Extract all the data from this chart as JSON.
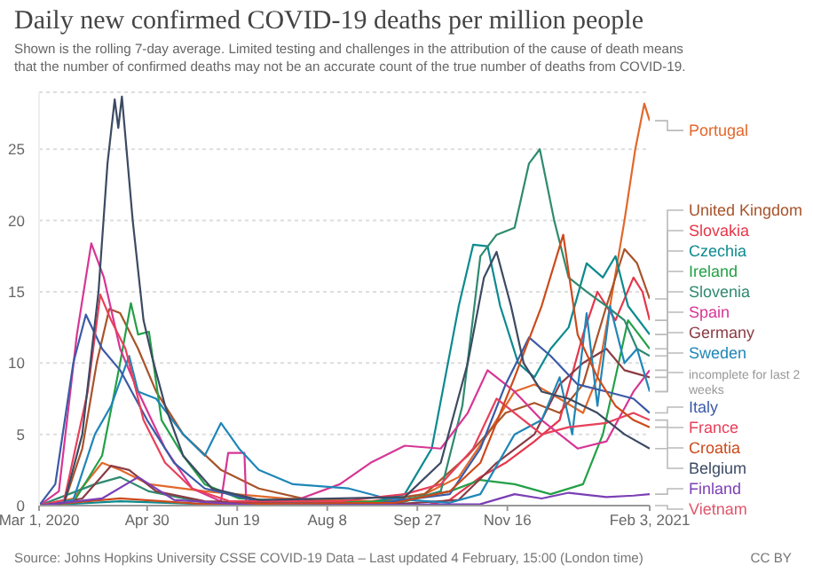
{
  "chart_data": {
    "type": "line",
    "title": "Daily new confirmed COVID-19 deaths per million people",
    "subtitle": "Shown is the rolling 7-day average. Limited testing and challenges in the attribution of the cause of death means that the number of confirmed deaths may not be an accurate count of the true number of deaths from COVID-19.",
    "annotations": [
      "Source: Johns Hopkins University CSSE COVID-19 Data – Last updated 4 February, 15:00 (London time)",
      "CC BY",
      {
        "text": "incomplete for last 2 weeks",
        "x": "2021-02-03",
        "y": 8
      }
    ],
    "xlim": [
      "2020-03-01",
      "2021-02-03"
    ],
    "xticks": [
      {
        "value": "2020-03-01",
        "label": "Mar 1, 2020"
      },
      {
        "value": "2020-04-30",
        "label": "Apr 30"
      },
      {
        "value": "2020-06-19",
        "label": "Jun 19"
      },
      {
        "value": "2020-08-08",
        "label": "Aug 8"
      },
      {
        "value": "2020-09-27",
        "label": "Sep 27"
      },
      {
        "value": "2020-11-16",
        "label": "Nov 16"
      },
      {
        "value": "2021-02-03",
        "label": "Feb 3, 2021"
      }
    ],
    "ylim": [
      0,
      29
    ],
    "yticks": [
      0,
      5,
      10,
      15,
      20,
      25
    ],
    "grid": "y",
    "line_style": "solid",
    "series": [
      {
        "name": "Portugal",
        "color": "#e2682b",
        "x": [
          "2020-03-01",
          "2020-03-20",
          "2020-04-05",
          "2020-04-15",
          "2020-05-01",
          "2020-06-01",
          "2020-07-15",
          "2020-09-01",
          "2020-10-01",
          "2020-10-20",
          "2020-11-05",
          "2020-11-20",
          "2020-12-01",
          "2020-12-15",
          "2020-12-28",
          "2021-01-05",
          "2021-01-12",
          "2021-01-20",
          "2021-01-26",
          "2021-01-31",
          "2021-02-03"
        ],
        "values": [
          0,
          0.5,
          3,
          2.5,
          1.5,
          1,
          0.5,
          0.3,
          0.8,
          2,
          5,
          8,
          8.5,
          7.5,
          6.5,
          9,
          14,
          20,
          25,
          28.2,
          27
        ]
      },
      {
        "name": "United Kingdom",
        "color": "#a8532a",
        "x": [
          "2020-03-01",
          "2020-03-15",
          "2020-03-25",
          "2020-04-02",
          "2020-04-09",
          "2020-04-15",
          "2020-04-25",
          "2020-05-05",
          "2020-05-20",
          "2020-06-10",
          "2020-07-01",
          "2020-08-01",
          "2020-09-01",
          "2020-10-01",
          "2020-10-25",
          "2020-11-15",
          "2020-12-01",
          "2020-12-15",
          "2020-12-28",
          "2021-01-10",
          "2021-01-20",
          "2021-01-27",
          "2021-02-03"
        ],
        "values": [
          0,
          0.2,
          4,
          10,
          13.8,
          13.5,
          11,
          8,
          5,
          2.5,
          1.2,
          0.3,
          0.2,
          0.8,
          3.5,
          6.5,
          7.2,
          6.5,
          8.5,
          14,
          18,
          17,
          14.5
        ]
      },
      {
        "name": "Slovakia",
        "color": "#e6364a",
        "x": [
          "2020-03-01",
          "2020-10-01",
          "2020-10-15",
          "2020-11-01",
          "2020-11-15",
          "2020-12-01",
          "2020-12-15",
          "2020-12-28",
          "2021-01-05",
          "2021-01-15",
          "2021-01-25",
          "2021-01-30",
          "2021-02-03"
        ],
        "values": [
          0,
          0,
          0.4,
          2,
          3,
          4.5,
          6,
          12,
          15,
          13,
          16,
          15,
          13
        ]
      },
      {
        "name": "Czechia",
        "color": "#0d8a8f",
        "x": [
          "2020-03-01",
          "2020-04-15",
          "2020-06-01",
          "2020-09-01",
          "2020-09-20",
          "2020-10-05",
          "2020-10-20",
          "2020-10-28",
          "2020-11-05",
          "2020-11-12",
          "2020-11-22",
          "2020-12-01",
          "2020-12-10",
          "2020-12-20",
          "2020-12-30",
          "2021-01-08",
          "2021-01-15",
          "2021-01-22",
          "2021-02-03"
        ],
        "values": [
          0,
          0.3,
          0.1,
          0.2,
          0.8,
          4,
          14,
          18.3,
          18.2,
          14,
          10,
          9,
          11,
          12.5,
          17,
          16,
          17.5,
          14,
          12
        ]
      },
      {
        "name": "Ireland",
        "color": "#23a047",
        "x": [
          "2020-03-01",
          "2020-03-20",
          "2020-04-05",
          "2020-04-15",
          "2020-04-21",
          "2020-04-25",
          "2020-05-01",
          "2020-05-08",
          "2020-05-20",
          "2020-06-01",
          "2020-06-20",
          "2020-08-01",
          "2020-09-15",
          "2020-10-15",
          "2020-11-01",
          "2020-11-20",
          "2020-12-10",
          "2020-12-28",
          "2021-01-08",
          "2021-01-15",
          "2021-01-22",
          "2021-01-28",
          "2021-02-03"
        ],
        "values": [
          0,
          0.2,
          3.5,
          10,
          14.2,
          12,
          12.2,
          6,
          3.5,
          1.5,
          0.5,
          0.2,
          0.3,
          1,
          1.8,
          1.5,
          0.8,
          1.5,
          5,
          9,
          13,
          12,
          11
        ]
      },
      {
        "name": "Slovenia",
        "color": "#2f8a6f",
        "x": [
          "2020-03-01",
          "2020-04-01",
          "2020-04-15",
          "2020-05-01",
          "2020-06-01",
          "2020-09-15",
          "2020-10-10",
          "2020-10-22",
          "2020-11-01",
          "2020-11-10",
          "2020-11-20",
          "2020-11-28",
          "2020-12-04",
          "2020-12-12",
          "2020-12-20",
          "2020-12-30",
          "2021-01-10",
          "2021-01-20",
          "2021-01-27",
          "2021-02-03"
        ],
        "values": [
          0,
          1.5,
          2,
          1,
          0.2,
          0.1,
          1,
          7,
          17.5,
          19,
          19.5,
          24,
          25,
          20,
          16,
          15,
          14,
          13,
          11,
          10.5
        ]
      },
      {
        "name": "Spain",
        "color": "#d63694",
        "x": [
          "2020-03-01",
          "2020-03-12",
          "2020-03-22",
          "2020-03-30",
          "2020-04-06",
          "2020-04-15",
          "2020-04-25",
          "2020-05-10",
          "2020-05-25",
          "2020-06-10",
          "2020-06-14",
          "2020-06-23",
          "2020-06-24",
          "2020-07-20",
          "2020-08-15",
          "2020-09-01",
          "2020-09-20",
          "2020-10-10",
          "2020-10-25",
          "2020-11-05",
          "2020-11-20",
          "2020-12-05",
          "2020-12-25",
          "2021-01-10",
          "2021-01-25",
          "2021-02-03"
        ],
        "values": [
          0,
          1,
          12,
          18.4,
          16,
          11,
          8,
          4,
          1.2,
          0.3,
          3.7,
          3.7,
          0.3,
          0.3,
          1.5,
          3,
          4.2,
          4,
          6.5,
          9.5,
          8,
          6,
          4,
          4.5,
          8,
          9.5
        ]
      },
      {
        "name": "Germany",
        "color": "#8a3b44",
        "x": [
          "2020-03-01",
          "2020-03-25",
          "2020-04-10",
          "2020-04-20",
          "2020-05-05",
          "2020-06-01",
          "2020-09-15",
          "2020-10-20",
          "2020-11-10",
          "2020-12-01",
          "2020-12-15",
          "2020-12-28",
          "2021-01-10",
          "2021-01-20",
          "2021-02-03"
        ],
        "values": [
          0,
          0.5,
          2.8,
          2.5,
          1,
          0.3,
          0.1,
          0.4,
          3,
          5,
          8.5,
          10,
          11,
          9.5,
          9
        ]
      },
      {
        "name": "Sweden",
        "color": "#1f86b8",
        "x": [
          "2020-03-01",
          "2020-03-20",
          "2020-04-01",
          "2020-04-10",
          "2020-04-20",
          "2020-04-25",
          "2020-05-05",
          "2020-05-20",
          "2020-06-01",
          "2020-06-10",
          "2020-06-20",
          "2020-07-01",
          "2020-07-20",
          "2020-08-20",
          "2020-09-10",
          "2020-10-15",
          "2020-11-01",
          "2020-11-20",
          "2020-12-05",
          "2020-12-15",
          "2020-12-22",
          "2020-12-30",
          "2021-01-05",
          "2021-01-12",
          "2021-01-20",
          "2021-01-27",
          "2021-02-03"
        ],
        "values": [
          0,
          0.4,
          5,
          7,
          10.5,
          8,
          7.5,
          5,
          3.5,
          5.8,
          4,
          2.5,
          1.5,
          1.2,
          0.5,
          0.2,
          0.8,
          5,
          6,
          9,
          5,
          13.5,
          7,
          14,
          10,
          11,
          8
        ]
      },
      {
        "name": "Italy",
        "color": "#3b5ba5",
        "x": [
          "2020-03-01",
          "2020-03-10",
          "2020-03-20",
          "2020-03-27",
          "2020-04-05",
          "2020-04-15",
          "2020-04-30",
          "2020-05-15",
          "2020-06-01",
          "2020-07-01",
          "2020-09-01",
          "2020-10-15",
          "2020-11-01",
          "2020-11-15",
          "2020-11-28",
          "2020-12-10",
          "2020-12-25",
          "2021-01-10",
          "2021-01-25",
          "2021-02-03"
        ],
        "values": [
          0,
          1.5,
          10,
          13.4,
          11,
          9.5,
          6,
          3,
          1.2,
          0.3,
          0.1,
          0.8,
          4,
          8.5,
          11.8,
          10.5,
          8.5,
          8,
          7.5,
          6.5
        ]
      },
      {
        "name": "France",
        "color": "#e8405a",
        "x": [
          "2020-03-01",
          "2020-03-15",
          "2020-03-28",
          "2020-04-04",
          "2020-04-10",
          "2020-04-18",
          "2020-04-28",
          "2020-05-10",
          "2020-05-25",
          "2020-06-15",
          "2020-08-15",
          "2020-09-20",
          "2020-10-10",
          "2020-10-28",
          "2020-11-10",
          "2020-11-20",
          "2020-12-05",
          "2020-12-20",
          "2021-01-10",
          "2021-01-25",
          "2021-02-03"
        ],
        "values": [
          0,
          0.4,
          8,
          14.8,
          13,
          11,
          6,
          3,
          1.2,
          0.3,
          0.3,
          0.8,
          1.5,
          4,
          7.5,
          6.5,
          5,
          5.5,
          5.8,
          6.5,
          6
        ]
      },
      {
        "name": "Croatia",
        "color": "#cc4a1b",
        "x": [
          "2020-03-01",
          "2020-04-15",
          "2020-06-01",
          "2020-09-15",
          "2020-10-15",
          "2020-11-01",
          "2020-11-20",
          "2020-12-05",
          "2020-12-17",
          "2020-12-25",
          "2021-01-05",
          "2021-01-15",
          "2021-01-25",
          "2021-02-03"
        ],
        "values": [
          0,
          0.5,
          0.1,
          0.2,
          1,
          3,
          9,
          14,
          19,
          12,
          9,
          7,
          6,
          5.5
        ]
      },
      {
        "name": "Belgium",
        "color": "#3c4a63",
        "x": [
          "2020-03-01",
          "2020-03-15",
          "2020-03-25",
          "2020-04-03",
          "2020-04-08",
          "2020-04-12",
          "2020-04-14",
          "2020-04-16",
          "2020-04-22",
          "2020-04-28",
          "2020-05-03",
          "2020-05-10",
          "2020-05-20",
          "2020-06-05",
          "2020-07-01",
          "2020-08-15",
          "2020-09-20",
          "2020-10-10",
          "2020-10-25",
          "2020-11-03",
          "2020-11-10",
          "2020-11-18",
          "2020-11-25",
          "2020-12-05",
          "2020-12-20",
          "2021-01-05",
          "2021-01-20",
          "2021-02-03"
        ],
        "values": [
          0,
          0.2,
          5,
          15,
          24,
          28.5,
          26.5,
          28.7,
          20,
          13,
          10.3,
          7,
          3.5,
          1.2,
          0.4,
          0.5,
          0.6,
          3,
          10,
          16,
          17.8,
          14,
          10,
          8,
          7.5,
          6.5,
          5,
          4
        ]
      },
      {
        "name": "Finland",
        "color": "#7b3fb5",
        "x": [
          "2020-03-01",
          "2020-04-05",
          "2020-04-25",
          "2020-05-15",
          "2020-07-01",
          "2020-11-01",
          "2020-11-20",
          "2020-12-05",
          "2020-12-20",
          "2021-01-10",
          "2021-01-25",
          "2021-02-03"
        ],
        "values": [
          0,
          0.5,
          2,
          0.4,
          0,
          0.1,
          0.8,
          0.5,
          0.9,
          0.6,
          0.7,
          0.8
        ]
      },
      {
        "name": "Vietnam",
        "color": "#e0566b",
        "x": [
          "2020-03-01",
          "2021-02-03"
        ],
        "values": [
          0,
          0
        ]
      }
    ]
  }
}
